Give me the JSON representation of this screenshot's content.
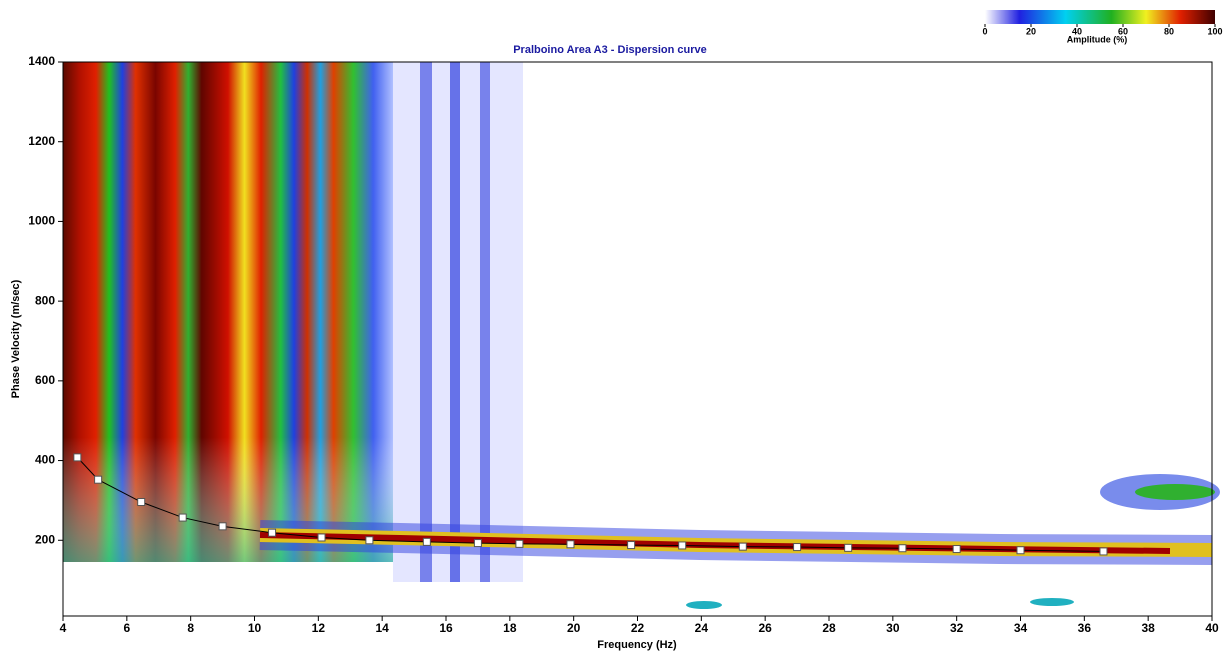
{
  "chart_data": {
    "type": "line",
    "title": "Pralboino Area A3 - Dispersion curve",
    "x_label": "Frequency (Hz)",
    "y_label": "Phase Velocity (m/sec)",
    "x": [
      4.45,
      5.1,
      6.45,
      7.75,
      9.0,
      10.55,
      12.1,
      13.6,
      15.4,
      17.0,
      18.3,
      19.9,
      21.8,
      23.4,
      25.3,
      27.0,
      28.6,
      30.3,
      32.0,
      34.0,
      36.6
    ],
    "values": [
      408,
      352,
      296,
      257,
      235,
      219,
      207,
      200,
      196,
      193,
      191,
      190,
      188,
      187,
      184,
      183,
      181,
      180,
      178,
      175,
      172
    ],
    "color": "#000000",
    "xlim": [
      4,
      40
    ],
    "xticks": [
      4,
      6,
      8,
      10,
      12,
      14,
      16,
      18,
      20,
      22,
      24,
      26,
      28,
      30,
      32,
      34,
      36,
      38,
      40
    ],
    "ylim": [
      10,
      1400
    ],
    "yticks": [
      200,
      400,
      600,
      800,
      1000,
      1200,
      1400
    ],
    "colorbar": {
      "label": "Amplitude (%)",
      "lim": [
        0,
        100
      ],
      "ticks": [
        0,
        20,
        40,
        60,
        80,
        100
      ]
    }
  }
}
